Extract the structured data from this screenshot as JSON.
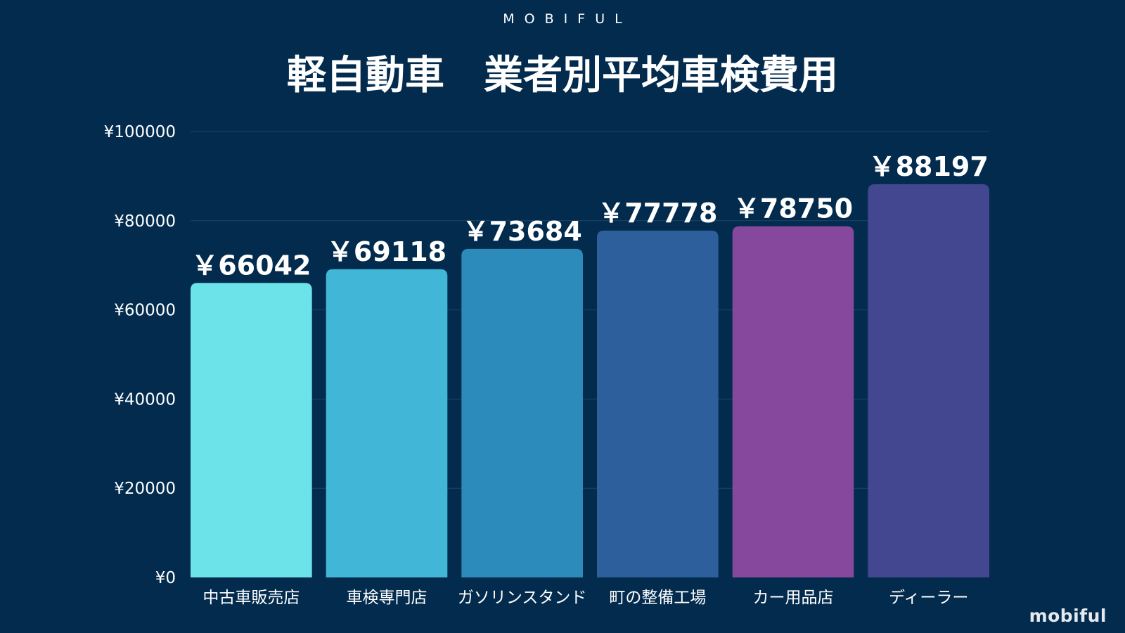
{
  "header": {
    "brand": "MOBIFUL",
    "title": "軽自動車　業者別平均車検費用"
  },
  "footer": {
    "logo": "mobiful"
  },
  "chart_data": {
    "type": "bar",
    "title": "軽自動車　業者別平均車検費用",
    "xlabel": "",
    "ylabel": "",
    "categories": [
      "中古車販売店",
      "車検専門店",
      "ガソリンスタンド",
      "町の整備工場",
      "カー用品店",
      "ディーラー"
    ],
    "values": [
      66042,
      69118,
      73684,
      77778,
      78750,
      88197
    ],
    "data_labels": [
      "￥66042",
      "￥69118",
      "￥73684",
      "￥77778",
      "￥78750",
      "￥88197"
    ],
    "bar_colors": [
      "#6be3e9",
      "#42b6d6",
      "#2d8bbc",
      "#2d5f9c",
      "#86489d",
      "#43478f"
    ],
    "ylim": [
      0,
      100000
    ],
    "yticks": [
      0,
      20000,
      40000,
      60000,
      80000,
      100000
    ],
    "ytick_labels": [
      "¥0",
      "¥20000",
      "¥40000",
      "¥60000",
      "¥80000",
      "¥100000"
    ],
    "grid": true,
    "legend": "none",
    "background": "#022b4e",
    "gridline_color": "#1d4566"
  }
}
